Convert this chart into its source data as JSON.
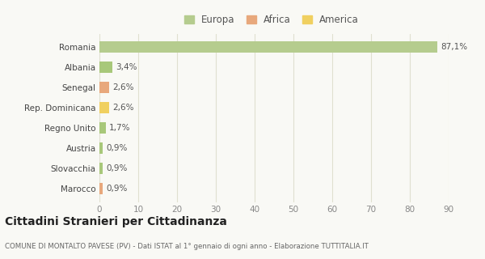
{
  "categories": [
    "Marocco",
    "Slovacchia",
    "Austria",
    "Regno Unito",
    "Rep. Dominicana",
    "Senegal",
    "Albania",
    "Romania"
  ],
  "values": [
    0.9,
    0.9,
    0.9,
    1.7,
    2.6,
    2.6,
    3.4,
    87.1
  ],
  "labels": [
    "0,9%",
    "0,9%",
    "0,9%",
    "1,7%",
    "2,6%",
    "2,6%",
    "3,4%",
    "87,1%"
  ],
  "colors": [
    "#e8a87c",
    "#a8c87a",
    "#a8c87a",
    "#a8c87a",
    "#f0d060",
    "#e8a87c",
    "#a8c87a",
    "#b5cc8e"
  ],
  "legend": [
    {
      "label": "Europa",
      "color": "#b5cc8e"
    },
    {
      "label": "Africa",
      "color": "#e8a87c"
    },
    {
      "label": "America",
      "color": "#f0d060"
    }
  ],
  "title": "Cittadini Stranieri per Cittadinanza",
  "subtitle": "COMUNE DI MONTALTO PAVESE (PV) - Dati ISTAT al 1° gennaio di ogni anno - Elaborazione TUTTITALIA.IT",
  "xlim": [
    0,
    90
  ],
  "xticks": [
    0,
    10,
    20,
    30,
    40,
    50,
    60,
    70,
    80,
    90
  ],
  "background_color": "#f9f9f5",
  "grid_color": "#e0e0d0",
  "bar_height": 0.55
}
